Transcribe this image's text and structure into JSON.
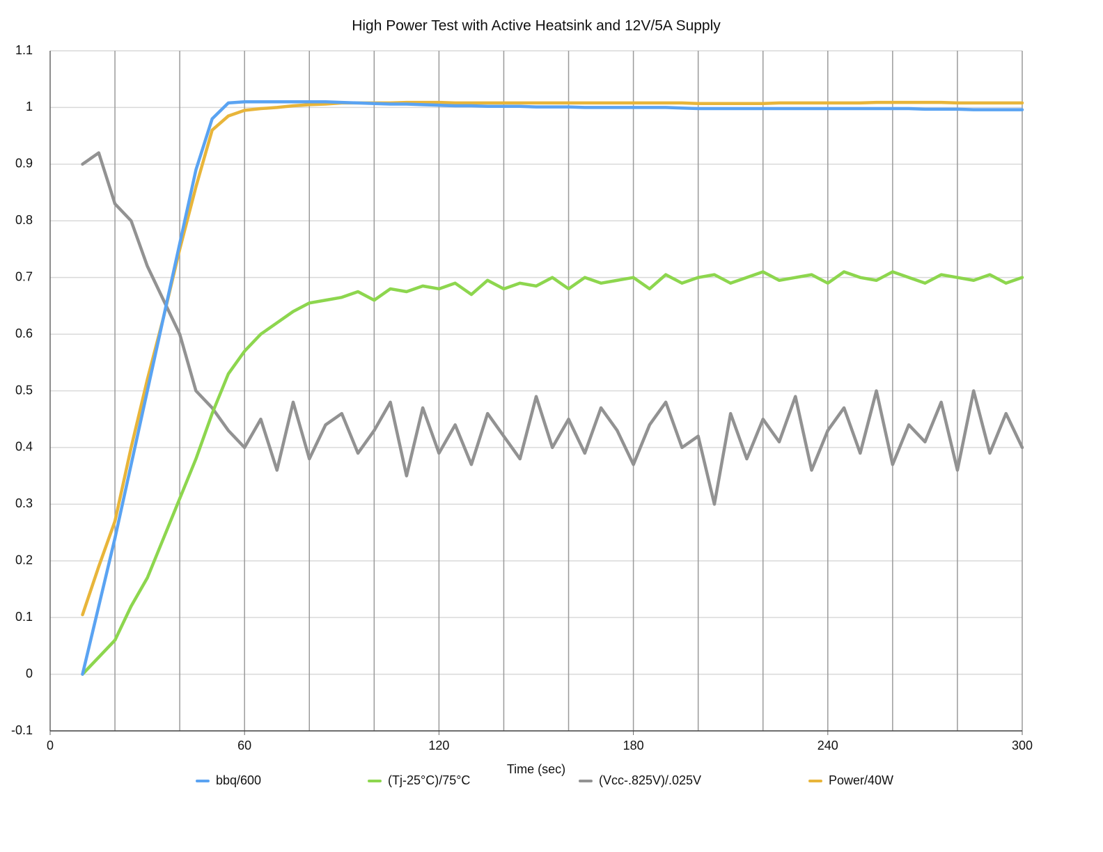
{
  "chart_data": {
    "type": "line",
    "title": "High Power Test with Active Heatsink and 12V/5A Supply",
    "x_label": "Time (sec)",
    "x": [
      10,
      15,
      20,
      25,
      30,
      35,
      40,
      45,
      50,
      55,
      60,
      65,
      70,
      75,
      80,
      85,
      90,
      95,
      100,
      105,
      110,
      115,
      120,
      125,
      130,
      135,
      140,
      145,
      150,
      155,
      160,
      165,
      170,
      175,
      180,
      185,
      190,
      195,
      200,
      205,
      210,
      215,
      220,
      225,
      230,
      235,
      240,
      245,
      250,
      255,
      260,
      265,
      270,
      275,
      280,
      285,
      290,
      295,
      300
    ],
    "series": [
      {
        "name": "bbq/600",
        "color": "#5aa3f2",
        "values": [
          0,
          0.12,
          0.24,
          0.37,
          0.5,
          0.63,
          0.76,
          0.89,
          0.98,
          1.008,
          1.01,
          1.01,
          1.01,
          1.01,
          1.01,
          1.01,
          1.009,
          1.008,
          1.007,
          1.006,
          1.006,
          1.005,
          1.004,
          1.003,
          1.003,
          1.002,
          1.002,
          1.002,
          1.001,
          1.001,
          1.001,
          1.0,
          1.0,
          1.0,
          1.0,
          1.0,
          1.0,
          0.999,
          0.998,
          0.998,
          0.998,
          0.998,
          0.998,
          0.998,
          0.998,
          0.998,
          0.998,
          0.998,
          0.998,
          0.998,
          0.998,
          0.998,
          0.997,
          0.997,
          0.997,
          0.996,
          0.996,
          0.996,
          0.996
        ]
      },
      {
        "name": "(Tj-25°C)/75°C",
        "color": "#8dd64e",
        "values": [
          0,
          0.03,
          0.06,
          0.12,
          0.17,
          0.24,
          0.31,
          0.38,
          0.46,
          0.53,
          0.57,
          0.6,
          0.62,
          0.64,
          0.655,
          0.66,
          0.665,
          0.675,
          0.66,
          0.68,
          0.675,
          0.685,
          0.68,
          0.69,
          0.67,
          0.695,
          0.68,
          0.69,
          0.685,
          0.7,
          0.68,
          0.7,
          0.69,
          0.695,
          0.7,
          0.68,
          0.705,
          0.69,
          0.7,
          0.705,
          0.69,
          0.7,
          0.71,
          0.695,
          0.7,
          0.705,
          0.69,
          0.71,
          0.7,
          0.695,
          0.71,
          0.7,
          0.69,
          0.705,
          0.7,
          0.695,
          0.705,
          0.69,
          0.7
        ]
      },
      {
        "name": "(Vcc-.825V)/.025V",
        "color": "#929292",
        "values": [
          0.9,
          0.92,
          0.83,
          0.8,
          0.72,
          0.66,
          0.6,
          0.5,
          0.47,
          0.43,
          0.4,
          0.45,
          0.36,
          0.48,
          0.38,
          0.44,
          0.46,
          0.39,
          0.43,
          0.48,
          0.35,
          0.47,
          0.39,
          0.44,
          0.37,
          0.46,
          0.42,
          0.38,
          0.49,
          0.4,
          0.45,
          0.39,
          0.47,
          0.43,
          0.37,
          0.44,
          0.48,
          0.4,
          0.42,
          0.3,
          0.46,
          0.38,
          0.45,
          0.41,
          0.49,
          0.36,
          0.43,
          0.47,
          0.39,
          0.5,
          0.37,
          0.44,
          0.41,
          0.48,
          0.36,
          0.5,
          0.39,
          0.46,
          0.4
        ]
      },
      {
        "name": "Power/40W",
        "color": "#e8b53a",
        "values": [
          0.105,
          0.19,
          0.27,
          0.4,
          0.52,
          0.63,
          0.75,
          0.86,
          0.96,
          0.985,
          0.995,
          0.998,
          1.0,
          1.003,
          1.005,
          1.006,
          1.008,
          1.008,
          1.008,
          1.008,
          1.009,
          1.009,
          1.009,
          1.008,
          1.008,
          1.008,
          1.008,
          1.008,
          1.008,
          1.008,
          1.008,
          1.008,
          1.008,
          1.008,
          1.008,
          1.008,
          1.008,
          1.008,
          1.007,
          1.007,
          1.007,
          1.007,
          1.007,
          1.008,
          1.008,
          1.008,
          1.008,
          1.008,
          1.008,
          1.009,
          1.009,
          1.009,
          1.009,
          1.009,
          1.008,
          1.008,
          1.008,
          1.008,
          1.008
        ]
      }
    ],
    "xlim": [
      0,
      300
    ],
    "xticks": [
      0,
      60,
      120,
      180,
      240,
      300
    ],
    "x_gridlines": [
      20,
      40,
      60,
      80,
      100,
      120,
      140,
      160,
      180,
      200,
      220,
      240,
      260,
      280,
      300
    ],
    "ylim": [
      -0.1,
      1.1
    ],
    "yticks": [
      -0.1,
      0,
      0.1,
      0.2,
      0.3,
      0.4,
      0.5,
      0.6,
      0.7,
      0.8,
      0.9,
      1,
      1.1
    ],
    "grid": true,
    "legend_position": "bottom"
  }
}
